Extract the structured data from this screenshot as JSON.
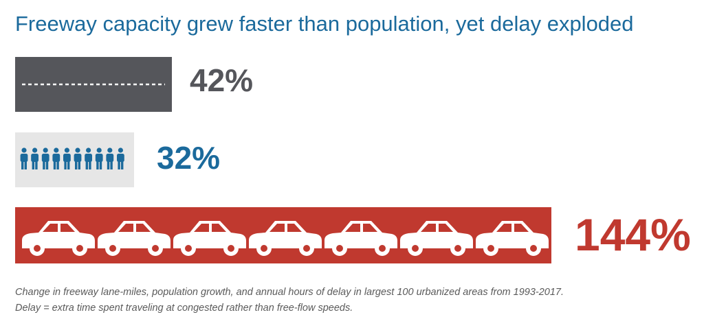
{
  "title": "Freeway capacity grew faster than population, yet delay exploded",
  "caption": [
    "Change in freeway lane-miles, population growth, and annual hours of delay in largest 100 urbanized areas from 1993-2017.",
    "Delay = extra time spent traveling at congested rather than free-flow speeds."
  ],
  "colors": {
    "title": "#1b6a9c",
    "road": "#55565b",
    "population_bg": "#e6e6e6",
    "population_figure": "#1b6a9c",
    "delay": "#c0392f",
    "caption": "#5a5a5a"
  },
  "chart_data": {
    "type": "bar",
    "title": "Freeway capacity grew faster than population, yet delay exploded",
    "categories": [
      "freeway lane-miles",
      "population",
      "annual hours of delay"
    ],
    "values": [
      42,
      32,
      144
    ],
    "value_labels": [
      "42%",
      "32%",
      "144%"
    ],
    "unit": "%",
    "bar_icons": [
      "road-dashed-lane-icon",
      "person-icon",
      "car-icon"
    ],
    "icon_counts": [
      0,
      10,
      7
    ],
    "label_colors": [
      "#55565b",
      "#1b6a9c",
      "#c0392f"
    ],
    "bar_colors": [
      "#55565b",
      "#e6e6e6",
      "#c0392f"
    ],
    "grid": false,
    "legend": "none"
  }
}
